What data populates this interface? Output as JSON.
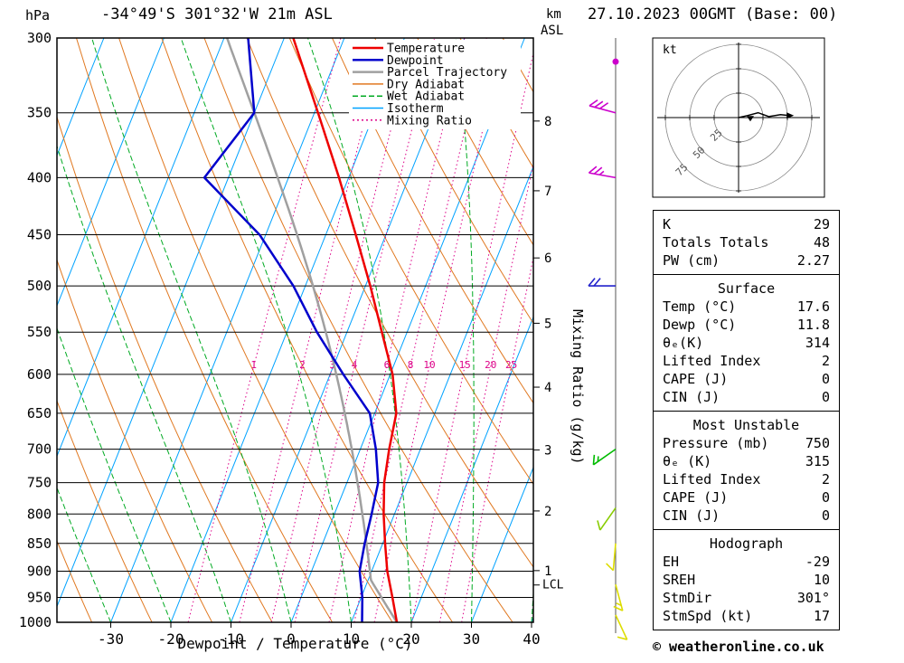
{
  "header": {
    "pressure_unit": "hPa",
    "title": "-34°49'S 301°32'W 21m ASL",
    "altitude_unit_line1": "km",
    "altitude_unit_line2": "ASL",
    "datetime": "27.10.2023 00GMT (Base: 00)"
  },
  "legend": {
    "items": [
      {
        "label": "Temperature",
        "color": "#ee0000",
        "dash": "",
        "width": 2.5
      },
      {
        "label": "Dewpoint",
        "color": "#0000cc",
        "dash": "",
        "width": 2.5
      },
      {
        "label": "Parcel Trajectory",
        "color": "#a0a0a0",
        "dash": "",
        "width": 2.5
      },
      {
        "label": "Dry Adiabat",
        "color": "#e07820",
        "dash": "",
        "width": 1.5
      },
      {
        "label": "Wet Adiabat",
        "color": "#00aa22",
        "dash": "6,3",
        "width": 1.5
      },
      {
        "label": "Isotherm",
        "color": "#00a2ff",
        "dash": "",
        "width": 1.5
      },
      {
        "label": "Mixing Ratio",
        "color": "#dd0088",
        "dash": "2,3",
        "width": 1.5
      }
    ]
  },
  "chart_data": {
    "type": "line",
    "title": "Skew-T log-P sounding",
    "pressure_axis": {
      "unit": "hPa",
      "scale": "log",
      "range": [
        300,
        1000
      ],
      "ticks": [
        300,
        350,
        400,
        450,
        500,
        550,
        600,
        650,
        700,
        750,
        800,
        850,
        900,
        950,
        1000
      ]
    },
    "temp_axis": {
      "unit": "°C",
      "ticks": [
        -30,
        -20,
        -10,
        0,
        10,
        20,
        30,
        40
      ],
      "label": "Dewpoint / Temperature (°C)"
    },
    "mixing_ratio_axis_label": "Mixing Ratio (g/kg)",
    "km_levels": [
      {
        "km": 1,
        "p": 899
      },
      {
        "km": 2,
        "p": 795
      },
      {
        "km": 3,
        "p": 701
      },
      {
        "km": 4,
        "p": 616
      },
      {
        "km": 5,
        "p": 540
      },
      {
        "km": 6,
        "p": 472
      },
      {
        "km": 7,
        "p": 411
      },
      {
        "km": 8,
        "p": 356
      }
    ],
    "lcl": {
      "label": "LCL",
      "p": 926
    },
    "mixing_ratio_lines": [
      1,
      2,
      3,
      4,
      6,
      8,
      10,
      15,
      20,
      25
    ],
    "isotherms": {
      "min": -120,
      "max": 40,
      "step": 10
    },
    "dry_adiabats_K": {
      "min": 230,
      "max": 460,
      "step": 10
    },
    "wet_adiabats_C": {
      "min": -60,
      "max": 40,
      "step": 10
    },
    "sounding": {
      "pressure": [
        1000,
        950,
        900,
        850,
        800,
        750,
        700,
        650,
        600,
        550,
        500,
        450,
        400,
        350,
        300
      ],
      "temperature": [
        17.6,
        15.2,
        12.6,
        10.4,
        8.2,
        6.2,
        4.8,
        3.6,
        0.4,
        -4.2,
        -9.2,
        -15.0,
        -21.6,
        -29.4,
        -38.5
      ],
      "dewpoint": [
        11.8,
        10.2,
        8.0,
        7.0,
        6.2,
        5.2,
        2.6,
        -0.8,
        -7.8,
        -15.0,
        -22.0,
        -31.0,
        -44.0,
        -40.0,
        -46.0
      ]
    },
    "parcel": {
      "surface_temp": 17.6,
      "surface_dewp": 11.8
    },
    "wind_barbs": [
      {
        "p": 315,
        "spd": 0,
        "dir": 0,
        "color": "#cc00cc"
      },
      {
        "p": 350,
        "spd": 30,
        "dir": 285,
        "color": "#cc00cc"
      },
      {
        "p": 400,
        "spd": 25,
        "dir": 280,
        "color": "#cc00cc"
      },
      {
        "p": 500,
        "spd": 20,
        "dir": 270,
        "color": "#2222cc"
      },
      {
        "p": 700,
        "spd": 15,
        "dir": 235,
        "color": "#00bb00"
      },
      {
        "p": 790,
        "spd": 10,
        "dir": 215,
        "color": "#88cc00"
      },
      {
        "p": 850,
        "spd": 10,
        "dir": 185,
        "color": "#dddd00"
      },
      {
        "p": 925,
        "spd": 15,
        "dir": 165,
        "color": "#dddd00"
      },
      {
        "p": 985,
        "spd": 10,
        "dir": 155,
        "color": "#dddd00"
      }
    ],
    "colors": {
      "temperature": "#ee0000",
      "dewpoint": "#0000cc",
      "parcel": "#a0a0a0",
      "dry_adiabat": "#e07820",
      "wet_adiabat": "#00aa22",
      "isotherm": "#00a2ff",
      "mixing_ratio": "#dd0088"
    }
  },
  "hodograph": {
    "unit_label": "kt",
    "rings_kt": [
      25,
      50,
      75
    ],
    "trace_kt": [
      [
        0,
        0
      ],
      [
        9,
        2
      ],
      [
        20,
        5
      ],
      [
        31,
        1
      ],
      [
        43,
        3
      ],
      [
        52,
        2
      ]
    ],
    "storm_marker_kt": [
      12,
      -4
    ]
  },
  "stats": {
    "sections": [
      {
        "header": null,
        "rows": [
          [
            "K",
            "29"
          ],
          [
            "Totals Totals",
            "48"
          ],
          [
            "PW (cm)",
            "2.27"
          ]
        ]
      },
      {
        "header": "Surface",
        "rows": [
          [
            "Temp (°C)",
            "17.6"
          ],
          [
            "Dewp (°C)",
            "11.8"
          ],
          [
            "θₑ(K)",
            "314"
          ],
          [
            "Lifted Index",
            "2"
          ],
          [
            "CAPE (J)",
            "0"
          ],
          [
            "CIN (J)",
            "0"
          ]
        ]
      },
      {
        "header": "Most Unstable",
        "rows": [
          [
            "Pressure (mb)",
            "750"
          ],
          [
            "θₑ (K)",
            "315"
          ],
          [
            "Lifted Index",
            "2"
          ],
          [
            "CAPE (J)",
            "0"
          ],
          [
            "CIN (J)",
            "0"
          ]
        ]
      },
      {
        "header": "Hodograph",
        "rows": [
          [
            "EH",
            "-29"
          ],
          [
            "SREH",
            "10"
          ],
          [
            "StmDir",
            "301°"
          ],
          [
            "StmSpd (kt)",
            "17"
          ]
        ]
      }
    ]
  },
  "footer": {
    "copyright": "© weatheronline.co.uk"
  }
}
